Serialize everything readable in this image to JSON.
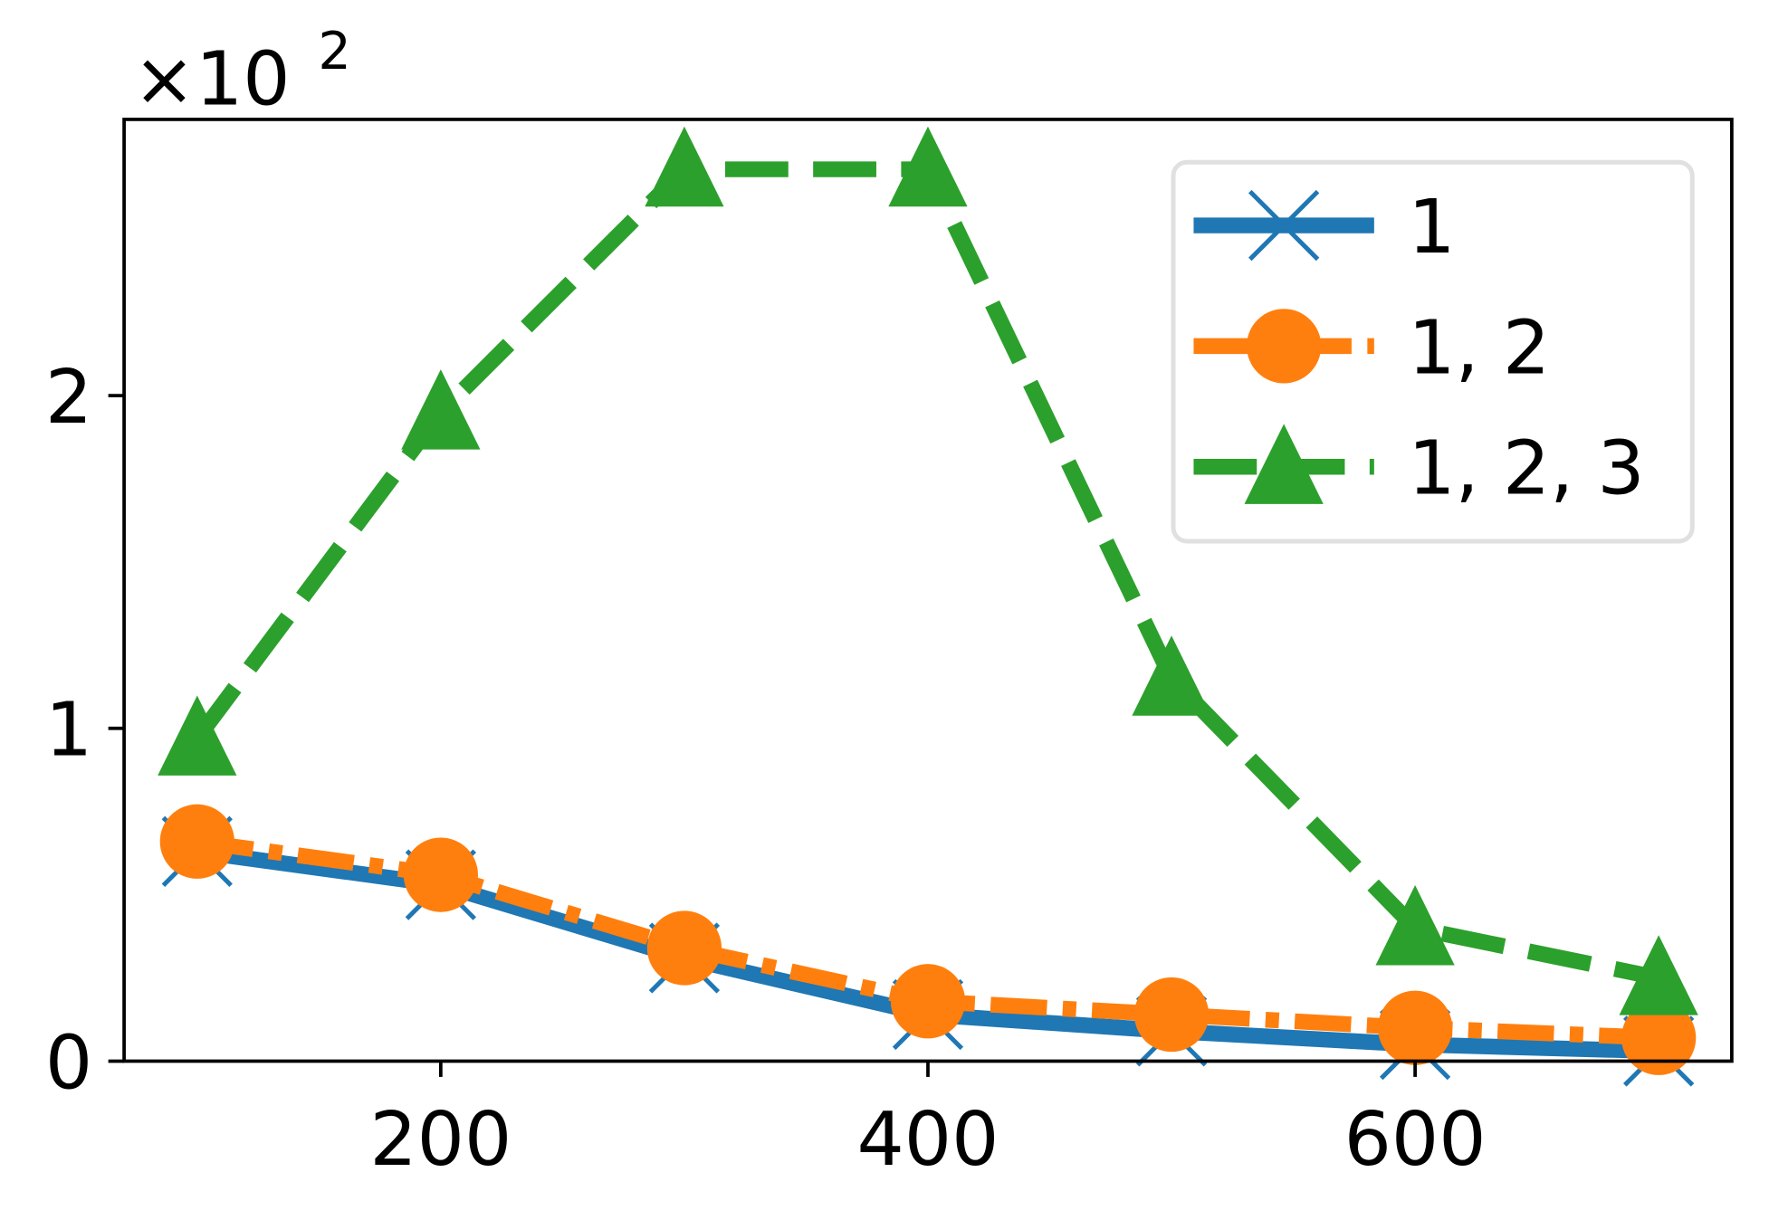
{
  "chart_data": {
    "type": "line",
    "title": "",
    "xlabel": "",
    "ylabel": "",
    "y_multiplier": {
      "base": "×10",
      "exponent": "2"
    },
    "x": [
      100,
      200,
      300,
      400,
      500,
      600,
      700
    ],
    "xlim": [
      70,
      730
    ],
    "ylim": [
      0,
      2.83
    ],
    "x_ticks": [
      200,
      400,
      600
    ],
    "x_tick_labels": [
      "200",
      "400",
      "600"
    ],
    "y_ticks": [
      0,
      1,
      2
    ],
    "y_tick_labels": [
      "0",
      "1",
      "2"
    ],
    "grid": false,
    "legend_placement": "top-right",
    "series": [
      {
        "name": "1",
        "color": "#1f77b4",
        "marker": "x",
        "linestyle": "solid",
        "values": [
          0.63,
          0.53,
          0.31,
          0.14,
          0.09,
          0.05,
          0.03
        ]
      },
      {
        "name": "1, 2",
        "color": "#ff7f0e",
        "marker": "circle",
        "linestyle": "dash-dot",
        "values": [
          0.66,
          0.56,
          0.34,
          0.18,
          0.14,
          0.1,
          0.07
        ]
      },
      {
        "name": "1, 2, 3",
        "color": "#2ca02c",
        "marker": "triangle",
        "linestyle": "dashed",
        "values": [
          0.97,
          1.95,
          2.68,
          2.68,
          1.15,
          0.4,
          0.25
        ]
      }
    ]
  }
}
